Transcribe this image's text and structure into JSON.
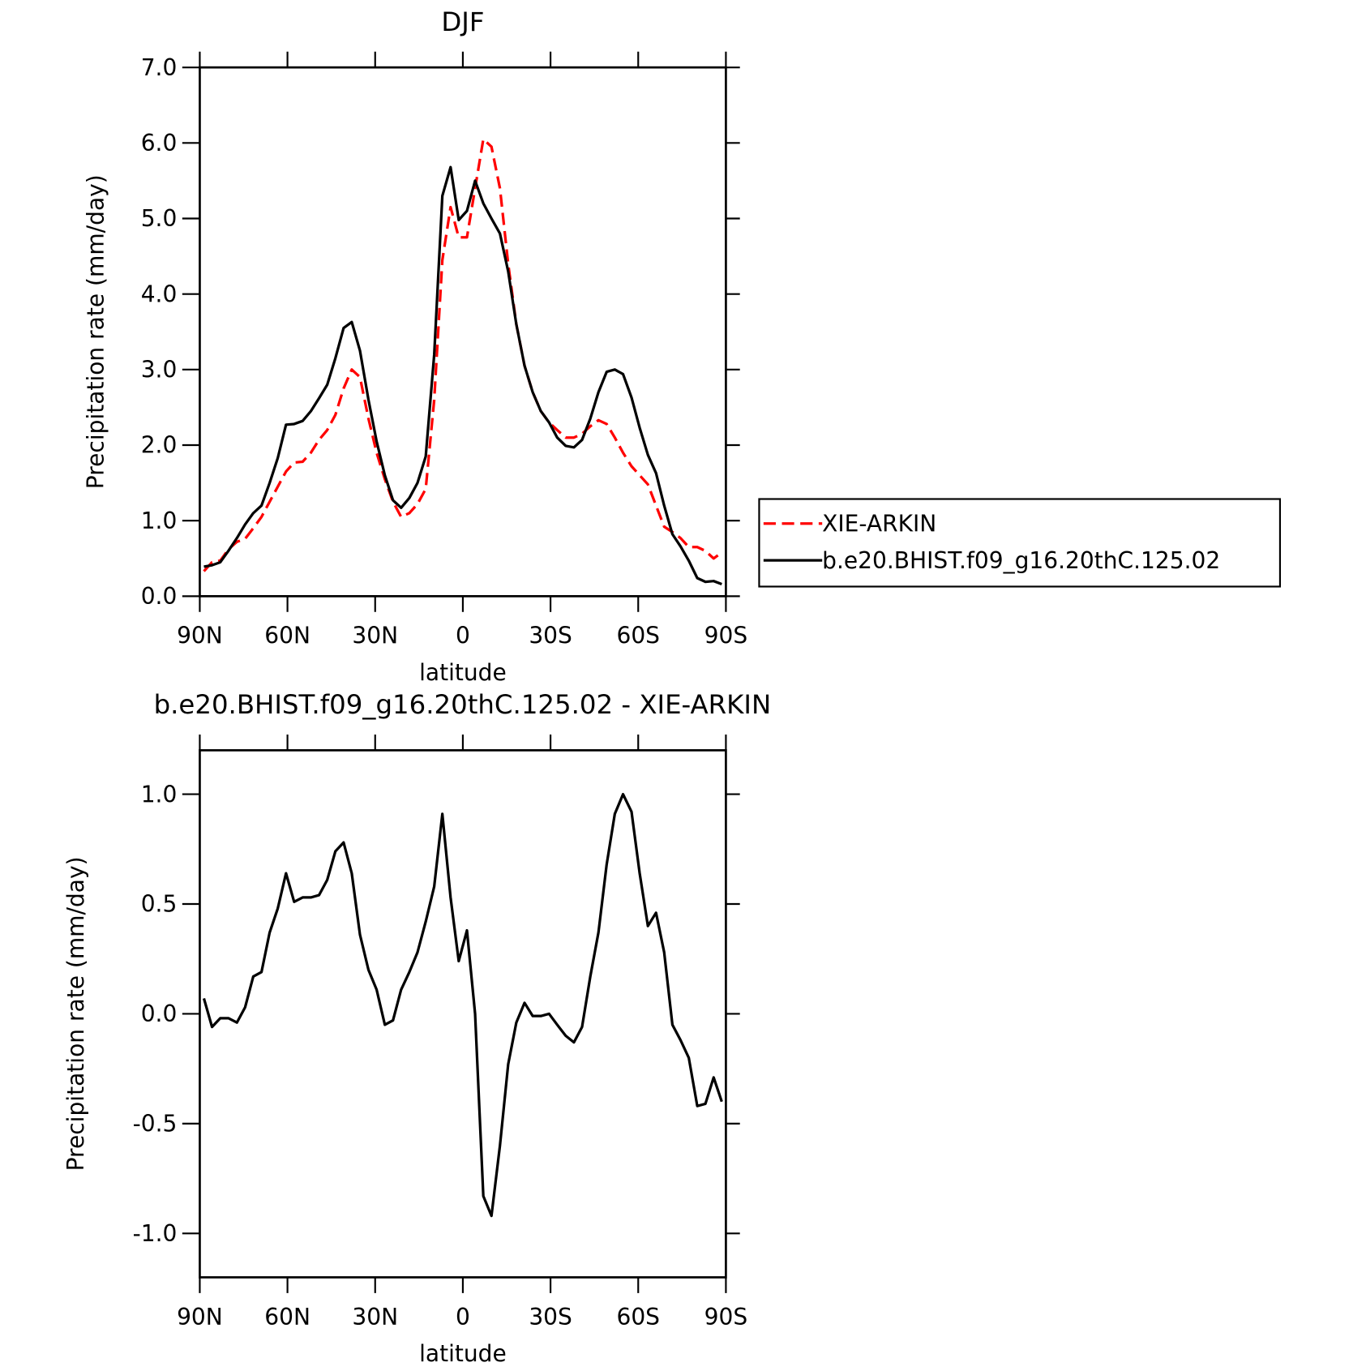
{
  "chart_data": [
    {
      "type": "line",
      "title": "DJF",
      "x_label": "latitude",
      "y_label": "Precipitation rate (mm/day)",
      "x": [
        88.6,
        85.8,
        83.0,
        80.2,
        77.3,
        74.5,
        71.7,
        68.9,
        66.1,
        63.3,
        60.5,
        57.7,
        54.8,
        52.0,
        49.2,
        46.4,
        43.6,
        40.8,
        38.0,
        35.2,
        32.3,
        29.5,
        26.7,
        23.9,
        21.1,
        18.3,
        15.5,
        12.7,
        9.8,
        7.0,
        4.2,
        1.4,
        -1.4,
        -4.2,
        -7.0,
        -9.8,
        -12.7,
        -15.5,
        -18.3,
        -21.1,
        -23.9,
        -26.7,
        -29.5,
        -32.3,
        -35.2,
        -38.0,
        -40.8,
        -43.6,
        -46.4,
        -49.2,
        -52.0,
        -54.8,
        -57.7,
        -60.5,
        -63.3,
        -66.1,
        -68.9,
        -71.7,
        -74.5,
        -77.3,
        -80.2,
        -83.0,
        -85.8,
        -88.6
      ],
      "series": [
        {
          "name": "XIE-ARKIN",
          "color": "#ff0000",
          "style": "dashed",
          "values": [
            0.33,
            0.45,
            0.47,
            0.62,
            0.72,
            0.76,
            0.9,
            1.05,
            1.25,
            1.45,
            1.65,
            1.77,
            1.78,
            1.9,
            2.07,
            2.2,
            2.4,
            2.75,
            3.0,
            2.9,
            2.35,
            1.9,
            1.55,
            1.25,
            1.05,
            1.1,
            1.22,
            1.42,
            2.6,
            4.45,
            5.15,
            4.75,
            4.75,
            5.4,
            6.05,
            5.95,
            5.4,
            4.4,
            3.6,
            3.05,
            2.7,
            2.45,
            2.3,
            2.2,
            2.1,
            2.1,
            2.15,
            2.25,
            2.33,
            2.28,
            2.1,
            1.9,
            1.72,
            1.6,
            1.48,
            1.2,
            0.92,
            0.85,
            0.77,
            0.65,
            0.65,
            0.6,
            0.5,
            0.58
          ]
        },
        {
          "name": "b.e20.BHIST.f09_g16.20thC.125.02",
          "color": "#000000",
          "style": "solid",
          "values": [
            0.39,
            0.41,
            0.45,
            0.6,
            0.77,
            0.95,
            1.1,
            1.2,
            1.5,
            1.83,
            2.27,
            2.28,
            2.32,
            2.45,
            2.62,
            2.8,
            3.15,
            3.55,
            3.63,
            3.25,
            2.6,
            2.05,
            1.6,
            1.27,
            1.17,
            1.3,
            1.5,
            1.85,
            3.2,
            5.3,
            5.68,
            4.98,
            5.1,
            5.5,
            5.2,
            5.0,
            4.8,
            4.3,
            3.6,
            3.05,
            2.7,
            2.45,
            2.3,
            2.1,
            1.99,
            1.97,
            2.07,
            2.35,
            2.7,
            2.97,
            3.0,
            2.94,
            2.63,
            2.23,
            1.87,
            1.63,
            1.2,
            0.82,
            0.66,
            0.47,
            0.24,
            0.19,
            0.2,
            0.16
          ]
        }
      ],
      "xlim": [
        90,
        -90
      ],
      "xticks": [
        {
          "value": 90,
          "label": "90N"
        },
        {
          "value": 60,
          "label": "60N"
        },
        {
          "value": 30,
          "label": "30N"
        },
        0,
        {
          "value": -30,
          "label": "30S"
        },
        {
          "value": -60,
          "label": "60S"
        },
        {
          "value": -90,
          "label": "90S"
        }
      ],
      "ylim": [
        0,
        7
      ],
      "yticks": [
        {
          "value": 0,
          "label": "0.0"
        },
        {
          "value": 1,
          "label": "1.0"
        },
        {
          "value": 2,
          "label": "2.0"
        },
        {
          "value": 3,
          "label": "3.0"
        },
        {
          "value": 4,
          "label": "4.0"
        },
        {
          "value": 5,
          "label": "5.0"
        },
        {
          "value": 6,
          "label": "6.0"
        },
        {
          "value": 7,
          "label": "7.0"
        }
      ],
      "grid": false,
      "legend": "right"
    },
    {
      "type": "line",
      "title": "b.e20.BHIST.f09_g16.20thC.125.02 - XIE-ARKIN",
      "x_label": "latitude",
      "y_label": "Precipitation rate (mm/day)",
      "x": [
        88.6,
        85.8,
        83.0,
        80.2,
        77.3,
        74.5,
        71.7,
        68.9,
        66.1,
        63.3,
        60.5,
        57.7,
        54.8,
        52.0,
        49.2,
        46.4,
        43.6,
        40.8,
        38.0,
        35.2,
        32.3,
        29.5,
        26.7,
        23.9,
        21.1,
        18.3,
        15.5,
        12.7,
        9.8,
        7.0,
        4.2,
        1.4,
        -1.4,
        -4.2,
        -7.0,
        -9.8,
        -12.7,
        -15.5,
        -18.3,
        -21.1,
        -23.9,
        -26.7,
        -29.5,
        -32.3,
        -35.2,
        -38.0,
        -40.8,
        -43.6,
        -46.4,
        -49.2,
        -52.0,
        -54.8,
        -57.7,
        -60.5,
        -63.3,
        -66.1,
        -68.9,
        -71.7,
        -74.5,
        -77.3,
        -80.2,
        -83.0,
        -85.8,
        -88.6
      ],
      "series": [
        {
          "color": "#000000",
          "style": "solid",
          "values": [
            0.07,
            -0.06,
            -0.02,
            -0.02,
            -0.04,
            0.03,
            0.17,
            0.19,
            0.37,
            0.48,
            0.64,
            0.51,
            0.53,
            0.53,
            0.54,
            0.61,
            0.74,
            0.78,
            0.64,
            0.36,
            0.2,
            0.11,
            -0.05,
            -0.03,
            0.11,
            0.19,
            0.28,
            0.42,
            0.58,
            0.91,
            0.53,
            0.24,
            0.38,
            0.0,
            -0.83,
            -0.92,
            -0.6,
            -0.23,
            -0.04,
            0.05,
            -0.01,
            -0.01,
            0.0,
            -0.05,
            -0.1,
            -0.13,
            -0.06,
            0.17,
            0.37,
            0.68,
            0.91,
            1.0,
            0.92,
            0.64,
            0.4,
            0.46,
            0.28,
            -0.05,
            -0.12,
            -0.2,
            -0.42,
            -0.41,
            -0.29,
            -0.4
          ]
        }
      ],
      "xlim": [
        90,
        -90
      ],
      "xticks": [
        {
          "value": 90,
          "label": "90N"
        },
        {
          "value": 60,
          "label": "60N"
        },
        {
          "value": 30,
          "label": "30N"
        },
        0,
        {
          "value": -30,
          "label": "30S"
        },
        {
          "value": -60,
          "label": "60S"
        },
        {
          "value": -90,
          "label": "90S"
        }
      ],
      "ylim": [
        -1.2,
        1.2
      ],
      "yticks": [
        {
          "value": -1,
          "label": "-1.0"
        },
        {
          "value": -0.5,
          "label": "-0.5"
        },
        {
          "value": 0,
          "label": "0.0"
        },
        {
          "value": 0.5,
          "label": "0.5"
        },
        {
          "value": 1,
          "label": "1.0"
        }
      ],
      "grid": false
    }
  ]
}
